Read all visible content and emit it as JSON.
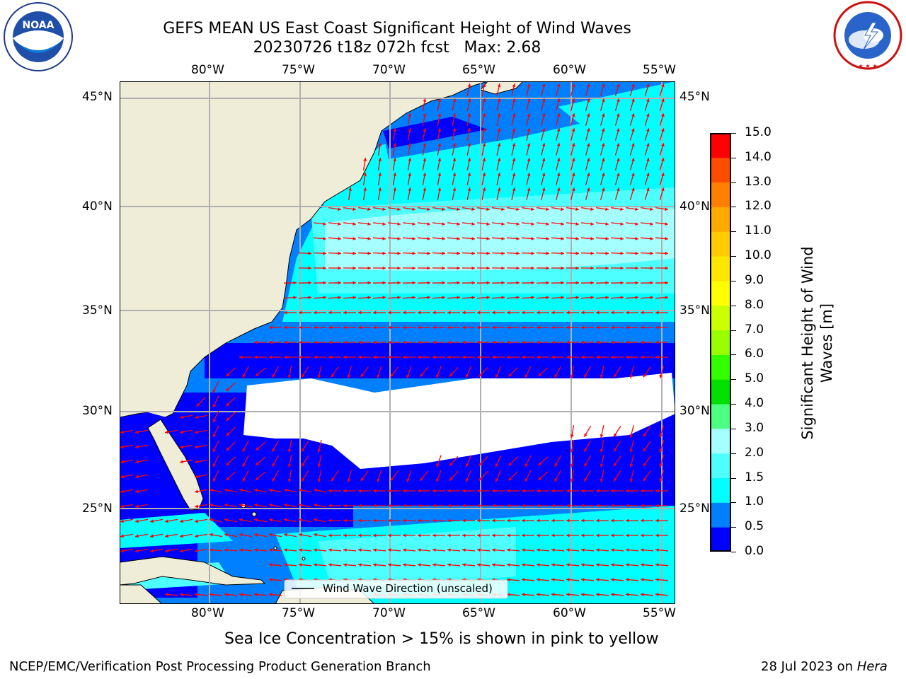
{
  "header": {
    "title_line1": "GEFS MEAN US East Coast Significant Height of Wind Waves",
    "title_line2": "20230726 t18z 072h fcst   Max: 2.68"
  },
  "logos": {
    "left_text": "NOAA",
    "left_ring_text": "NATIONAL OCEANIC AND ATMOSPHERIC ADMINISTRATION · U.S. DEPARTMENT OF COMMERCE",
    "right_ring_text": "NATIONAL WEATHER SERVICE"
  },
  "map": {
    "lon_labels": [
      "80°W",
      "75°W",
      "70°W",
      "65°W",
      "60°W",
      "55°W"
    ],
    "lat_labels": [
      "45°N",
      "40°N",
      "35°N",
      "30°N",
      "25°N"
    ],
    "legend_label": "Wind Wave Direction (unscaled)",
    "colors": {
      "land": "#efedd8",
      "grid": "#b0b0b0",
      "arrow": "#ff0000",
      "no_data": "#ffffff"
    }
  },
  "colorbar": {
    "label_line1": "Significant Height of Wind",
    "label_line2": "Waves [m]",
    "ticks": [
      "0.0",
      "0.5",
      "1.0",
      "1.5",
      "2.0",
      "3.0",
      "4.0",
      "5.0",
      "6.0",
      "7.0",
      "8.0",
      "9.0",
      "10.0",
      "11.0",
      "12.0",
      "13.0",
      "14.0",
      "15.0"
    ],
    "colors": [
      "#0000ff",
      "#0080ff",
      "#00ffff",
      "#4dffff",
      "#a6ffff",
      "#4dff80",
      "#00e000",
      "#33ff00",
      "#99ff00",
      "#ccff00",
      "#ffff00",
      "#ffe600",
      "#ffcc00",
      "#ffaa00",
      "#ff8000",
      "#ff4d00",
      "#ff0000"
    ]
  },
  "footer": {
    "sea_ice_note": "Sea Ice Concentration > 15% is shown in pink to yellow",
    "branch": "NCEP/EMC/Verification Post Processing Product Generation Branch",
    "date": "28 Jul 2023 on",
    "machine": "Hera"
  }
}
